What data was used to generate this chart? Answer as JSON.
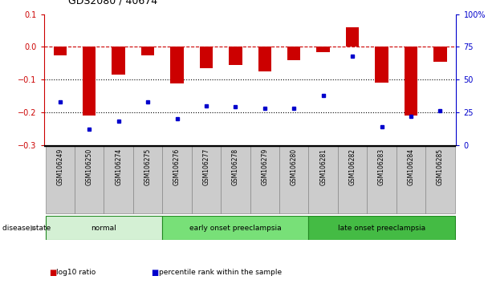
{
  "title": "GDS2080 / 40674",
  "samples": [
    "GSM106249",
    "GSM106250",
    "GSM106274",
    "GSM106275",
    "GSM106276",
    "GSM106277",
    "GSM106278",
    "GSM106279",
    "GSM106280",
    "GSM106281",
    "GSM106282",
    "GSM106283",
    "GSM106284",
    "GSM106285"
  ],
  "log10_ratio": [
    -0.025,
    -0.21,
    -0.085,
    -0.025,
    -0.113,
    -0.065,
    -0.055,
    -0.075,
    -0.04,
    -0.015,
    0.06,
    -0.11,
    -0.21,
    -0.045
  ],
  "percentile_rank": [
    33,
    12,
    18,
    33,
    20,
    30,
    29,
    28,
    28,
    38,
    68,
    14,
    22,
    26
  ],
  "groups": [
    {
      "label": "normal",
      "start": 0,
      "end": 4,
      "color": "#d4f0d4"
    },
    {
      "label": "early onset preeclampsia",
      "start": 4,
      "end": 9,
      "color": "#78e078"
    },
    {
      "label": "late onset preeclampsia",
      "start": 9,
      "end": 14,
      "color": "#44bb44"
    }
  ],
  "bar_color": "#cc0000",
  "dot_color": "#0000cc",
  "dashed_line_color": "#cc0000",
  "ylim_left": [
    -0.3,
    0.1
  ],
  "ylim_right": [
    0,
    100
  ],
  "yticks_left": [
    -0.3,
    -0.2,
    -0.1,
    0.0,
    0.1
  ],
  "yticks_right": [
    0,
    25,
    50,
    75,
    100
  ],
  "ylabel_left_color": "#cc0000",
  "ylabel_right_color": "#0000cc",
  "legend_items": [
    "log10 ratio",
    "percentile rank within the sample"
  ],
  "disease_state_label": "disease state"
}
